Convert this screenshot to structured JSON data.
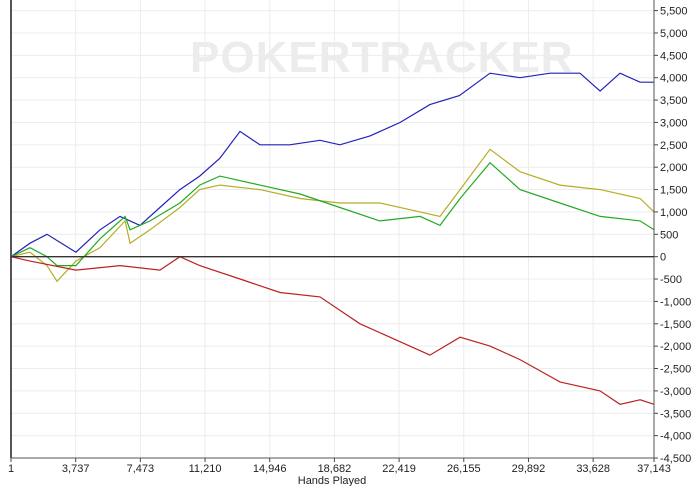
{
  "chart_data": {
    "type": "line",
    "title": "",
    "watermark": "POKERTRACKER",
    "xlabel": "Hands Played",
    "ylabel": "",
    "xlim": [
      1,
      37143
    ],
    "ylim": [
      -4500,
      5500
    ],
    "grid": true,
    "legend": "none",
    "x_ticks": [
      "1",
      "3,737",
      "7,473",
      "11,210",
      "14,946",
      "18,682",
      "22,419",
      "26,155",
      "29,892",
      "33,628",
      "37,143"
    ],
    "x_tick_values": [
      1,
      3737,
      7473,
      11210,
      14946,
      18682,
      22419,
      26155,
      29892,
      33628,
      37143
    ],
    "y_ticks": [
      "5,500",
      "5,000",
      "4,500",
      "4,000",
      "3,500",
      "3,000",
      "2,500",
      "2,000",
      "1,500",
      "1,000",
      "500",
      "0",
      "-500",
      "-1,000",
      "-1,500",
      "-2,000",
      "-2,500",
      "-3,000",
      "-3,500",
      "-4,000",
      "-4,500"
    ],
    "y_tick_values": [
      5500,
      5000,
      4500,
      4000,
      3500,
      3000,
      2500,
      2000,
      1500,
      1000,
      500,
      0,
      -500,
      -1000,
      -1500,
      -2000,
      -2500,
      -3000,
      -3500,
      -4000,
      -4500
    ],
    "series": [
      {
        "color": "#2222bb",
        "x": [
          1,
          1100,
          2080,
          3750,
          5140,
          6300,
          7450,
          8600,
          9760,
          10900,
          12070,
          13230,
          14380,
          16100,
          17850,
          19000,
          20740,
          22470,
          24200,
          25900,
          27670,
          29400,
          31140,
          32870,
          34030,
          35180,
          36340,
          37143
        ],
        "y": [
          0,
          300,
          500,
          100,
          600,
          900,
          700,
          1100,
          1500,
          1800,
          2200,
          2800,
          2500,
          2500,
          2600,
          2500,
          2700,
          3000,
          3400,
          3600,
          4100,
          4000,
          4100,
          4100,
          3700,
          4100,
          3900,
          3900
        ]
      },
      {
        "color": "#b5ad25",
        "x": [
          1,
          1100,
          2080,
          2660,
          3750,
          5140,
          6590,
          6880,
          8030,
          9760,
          10900,
          12070,
          14380,
          16700,
          19000,
          21300,
          23630,
          24780,
          25940,
          27670,
          29400,
          31710,
          34030,
          36340,
          37143
        ],
        "y": [
          0,
          100,
          -200,
          -550,
          -100,
          200,
          800,
          300,
          600,
          1100,
          1500,
          1600,
          1500,
          1300,
          1200,
          1200,
          1000,
          900,
          1500,
          2400,
          1900,
          1600,
          1500,
          1300,
          1000
        ]
      },
      {
        "color": "#22aa22",
        "x": [
          1,
          1100,
          2080,
          2660,
          3750,
          5140,
          6590,
          6880,
          8030,
          9760,
          10900,
          12070,
          14380,
          16700,
          19000,
          21300,
          23630,
          24780,
          25940,
          27670,
          29400,
          31710,
          34030,
          36340,
          37143
        ],
        "y": [
          0,
          200,
          0,
          -200,
          -200,
          400,
          900,
          600,
          800,
          1200,
          1600,
          1800,
          1600,
          1400,
          1100,
          800,
          900,
          700,
          1300,
          2100,
          1500,
          1200,
          900,
          800,
          600
        ]
      },
      {
        "color": "#bb2222",
        "x": [
          1,
          1100,
          3750,
          6300,
          8600,
          9760,
          10900,
          13230,
          15540,
          17850,
          20160,
          22470,
          24200,
          25940,
          27670,
          29400,
          31710,
          34030,
          35180,
          36340,
          37143
        ],
        "y": [
          0,
          -100,
          -300,
          -200,
          -300,
          0,
          -200,
          -500,
          -800,
          -900,
          -1500,
          -1900,
          -2200,
          -1800,
          -2000,
          -2300,
          -2800,
          -3000,
          -3300,
          -3200,
          -3300
        ]
      }
    ]
  }
}
